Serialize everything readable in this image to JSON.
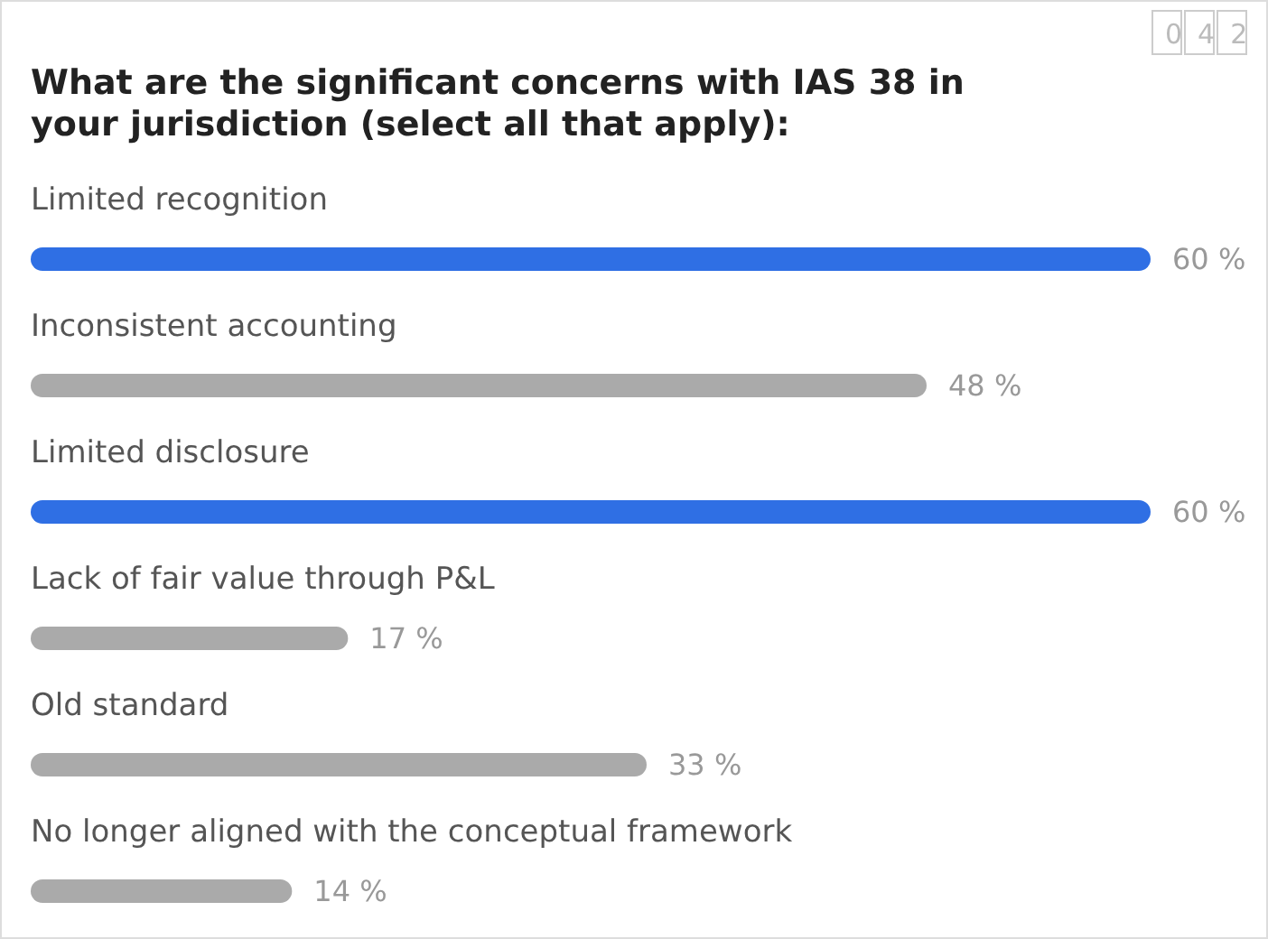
{
  "chart_data": {
    "type": "bar",
    "orientation": "horizontal",
    "title": "What are the significant concerns with IAS 38 in your jurisdiction (select all that apply):",
    "categories": [
      "Limited recognition",
      "Inconsistent accounting",
      "Limited disclosure",
      "Lack of fair value through P&L",
      "Old standard",
      "No longer aligned with the conceptual framework"
    ],
    "values": [
      60,
      48,
      60,
      17,
      33,
      14
    ],
    "colors": [
      "#2f6fe4",
      "#aaaaaa",
      "#2f6fe4",
      "#aaaaaa",
      "#aaaaaa",
      "#aaaaaa"
    ],
    "value_labels": [
      "60 %",
      "48 %",
      "60 %",
      "17 %",
      "33 %",
      "14 %"
    ],
    "xlim": [
      0,
      60
    ],
    "annotations": [
      "042"
    ]
  }
}
